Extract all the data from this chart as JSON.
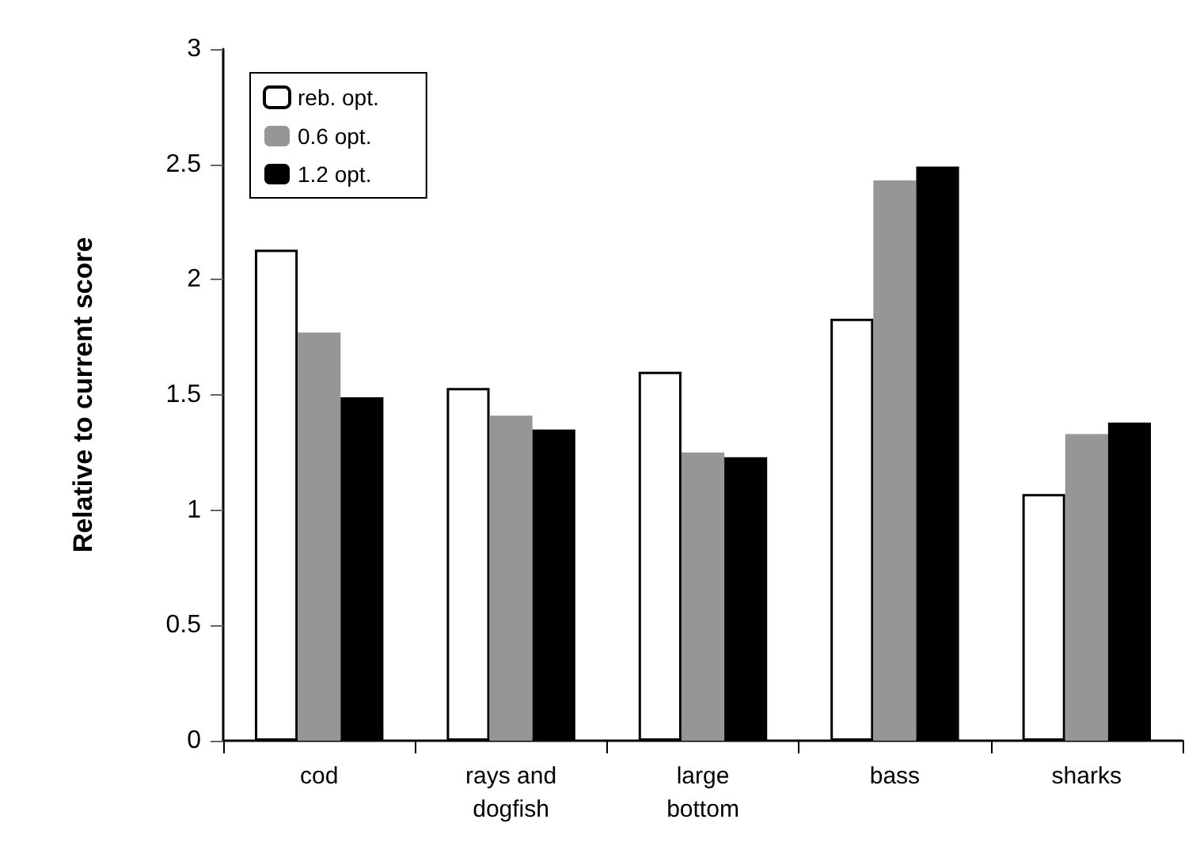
{
  "chart_data": {
    "type": "bar",
    "ylabel": "Relative to current score",
    "categories": [
      "cod",
      "rays and\ndogfish",
      "large\nbottom",
      "bass",
      "sharks"
    ],
    "series": [
      {
        "name": "reb. opt.",
        "color": "#ffffff",
        "values": [
          2.13,
          1.53,
          1.6,
          1.83,
          1.07
        ]
      },
      {
        "name": "0.6 opt.",
        "color": "#969696",
        "values": [
          1.77,
          1.41,
          1.25,
          2.43,
          1.33
        ]
      },
      {
        "name": "1.2 opt.",
        "color": "#000000",
        "values": [
          1.49,
          1.35,
          1.23,
          2.49,
          1.38
        ]
      }
    ],
    "ylim": [
      0,
      3
    ],
    "yticks": [
      0,
      0.5,
      1,
      1.5,
      2,
      2.5,
      3
    ],
    "grid": false,
    "legend": "top left"
  }
}
